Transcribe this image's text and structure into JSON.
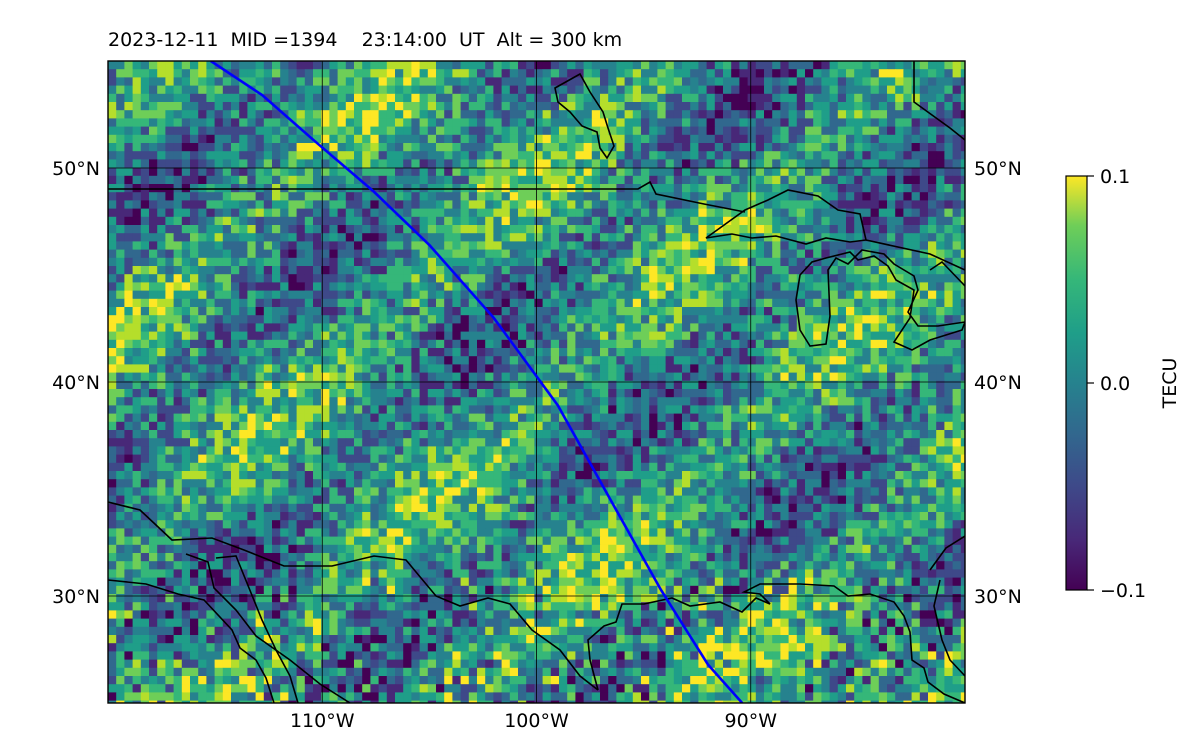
{
  "title": "2023-12-11  MID =1394    23:14:00  UT  Alt = 300 km",
  "map": {
    "lon_range": [
      -120,
      -80
    ],
    "lat_range": [
      25,
      55
    ],
    "lon_gridlines": [
      -110,
      -100,
      -90
    ],
    "lat_gridlines": [
      30,
      40,
      50
    ],
    "lon_tick_labels": [
      "110°W",
      "100°W",
      "90°W"
    ],
    "lat_tick_labels": [
      "30°N",
      "40°N",
      "50°N"
    ],
    "field": "TEC perturbation",
    "track_color": "#0000ff",
    "satellite_track": [
      [
        -115.2,
        55
      ],
      [
        -112.8,
        53.4
      ],
      [
        -110.4,
        51.3
      ],
      [
        -107.6,
        48.9
      ],
      [
        -105,
        46.4
      ],
      [
        -102,
        43
      ],
      [
        -99,
        38.9
      ],
      [
        -96.6,
        34.6
      ],
      [
        -94.2,
        30.3
      ],
      [
        -92,
        26.8
      ],
      [
        -90.4,
        25
      ]
    ]
  },
  "colorbar": {
    "label": "TECU",
    "ticks": [
      "0.1",
      "0.0",
      "−0.1"
    ],
    "vmin": -0.1,
    "vmax": 0.1,
    "colormap": "viridis"
  }
}
